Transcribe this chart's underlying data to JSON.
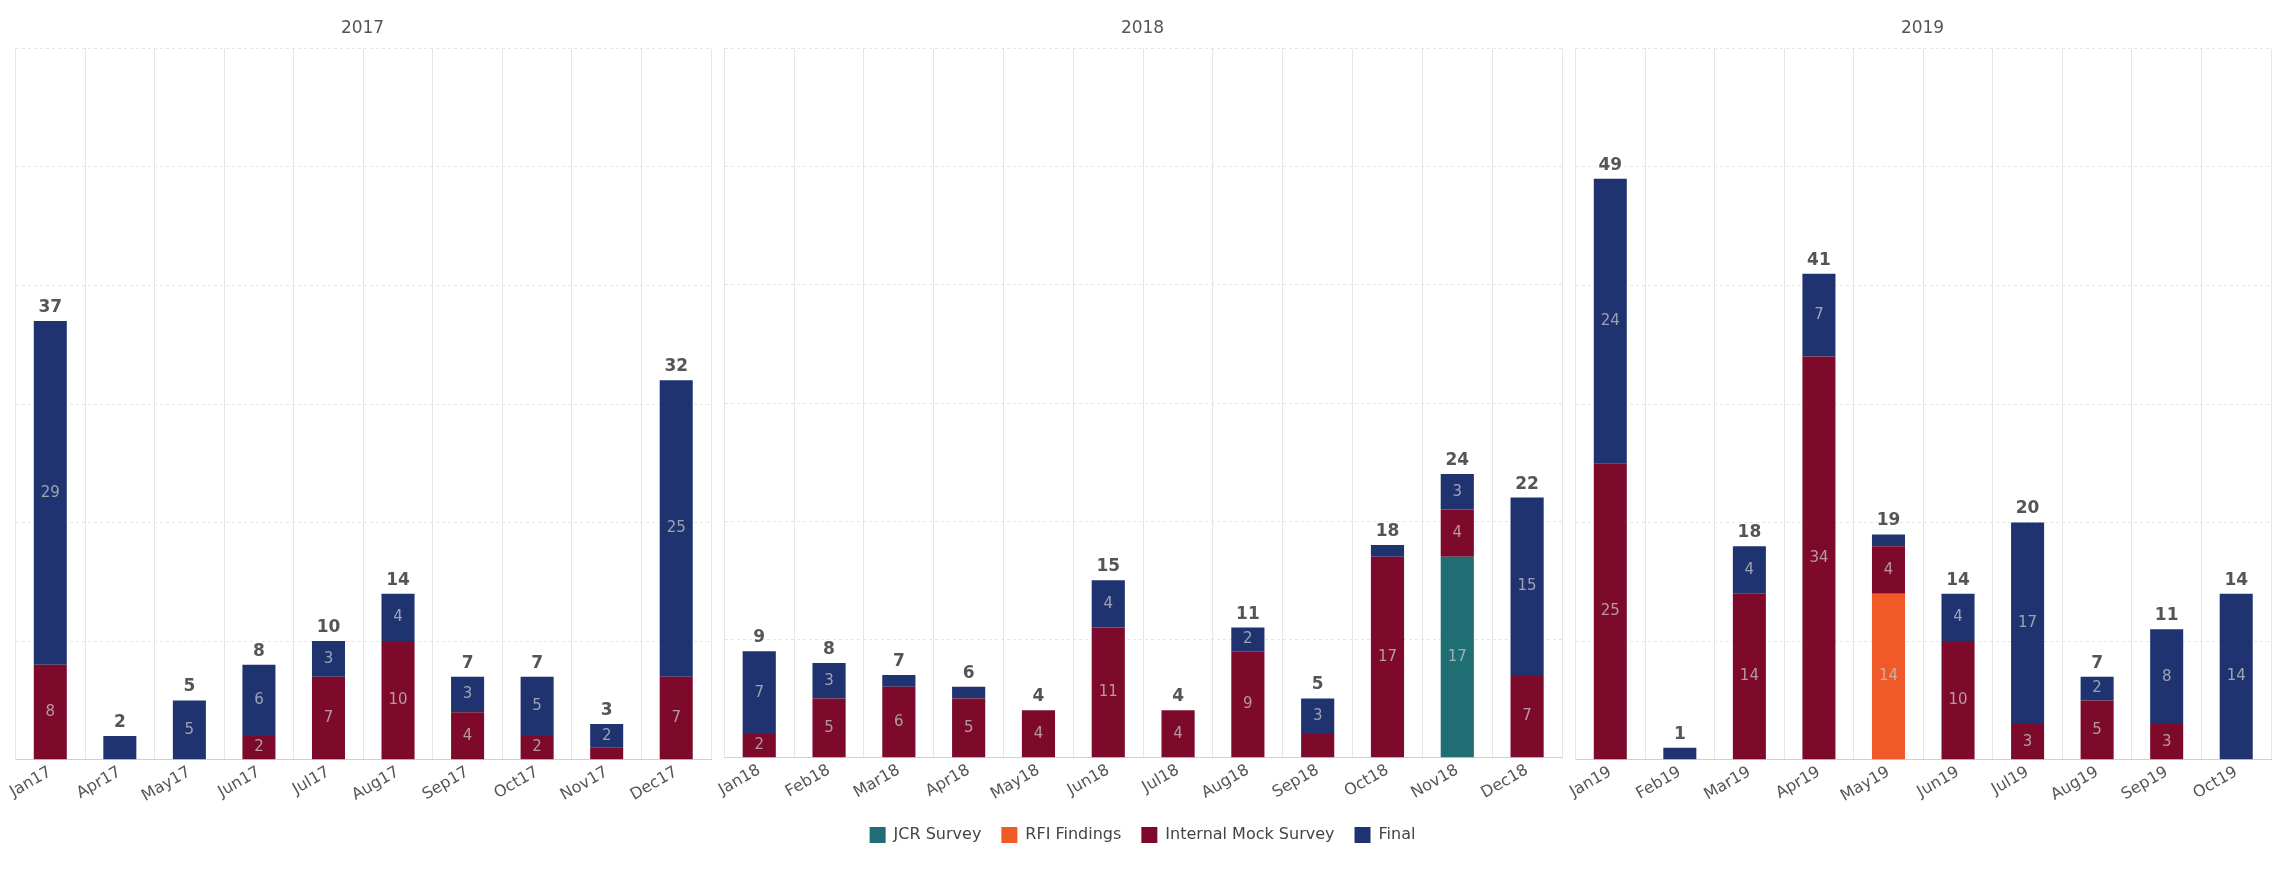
{
  "chart_data": [
    {
      "type": "bar",
      "title": "2017",
      "stacked": true,
      "grid": true,
      "tick_labels": "x",
      "legend": false,
      "ylim": [
        0,
        60
      ],
      "yticks": [
        {
          "value": 0,
          "label": null
        },
        {
          "value": 10,
          "label": null
        },
        {
          "value": 20,
          "label": null
        },
        {
          "value": 30,
          "label": null
        },
        {
          "value": 40,
          "label": null
        },
        {
          "value": 50,
          "label": null
        },
        {
          "value": 60,
          "label": null
        }
      ],
      "categories": [
        "Jan17",
        "Apr17",
        "May17",
        "Jun17",
        "Jul17",
        "Aug17",
        "Sep17",
        "Oct17",
        "Nov17",
        "Dec17"
      ],
      "series": [
        {
          "color": "#7d0a2a",
          "values": [
            8,
            null,
            null,
            2,
            7,
            10,
            4,
            2,
            1,
            7
          ],
          "value_labels": [
            "8",
            null,
            null,
            "2",
            "7",
            "10",
            "4",
            "2",
            null,
            "7"
          ]
        },
        {
          "color": "#1f3370",
          "values": [
            29,
            2,
            5,
            6,
            3,
            4,
            3,
            5,
            2,
            25
          ],
          "value_labels": [
            "29",
            null,
            "5",
            "6",
            "3",
            "4",
            "3",
            "5",
            "2",
            "25"
          ]
        }
      ],
      "totals": [
        "37",
        "2",
        "5",
        "8",
        "10",
        "14",
        "7",
        "7",
        "3",
        "32"
      ]
    },
    {
      "type": "bar",
      "title": "2018",
      "stacked": true,
      "grid": true,
      "tick_labels": "x",
      "legend": "bottom",
      "ylim": [
        0,
        60
      ],
      "yticks": [
        {
          "value": 0,
          "label": null
        },
        {
          "value": 10,
          "label": null
        },
        {
          "value": 20,
          "label": null
        },
        {
          "value": 30,
          "label": null
        },
        {
          "value": 40,
          "label": null
        },
        {
          "value": 50,
          "label": null
        },
        {
          "value": 60,
          "label": null
        }
      ],
      "categories": [
        "Jan18",
        "Feb18",
        "Mar18",
        "Apr18",
        "May18",
        "Jun18",
        "Jul18",
        "Aug18",
        "Sep18",
        "Oct18",
        "Nov18",
        "Dec18"
      ],
      "series": [
        {
          "name": "JCR Survey",
          "color": "#1e6e73",
          "values": [
            null,
            null,
            null,
            null,
            null,
            null,
            null,
            null,
            null,
            null,
            17,
            null
          ],
          "value_labels": [
            null,
            null,
            null,
            null,
            null,
            null,
            null,
            null,
            null,
            null,
            "17",
            null
          ]
        },
        {
          "name": "RFI Findings",
          "color": "#f05a28",
          "values": [
            null,
            null,
            null,
            null,
            null,
            null,
            null,
            null,
            null,
            null,
            null,
            null
          ]
        },
        {
          "name": "Internal Mock Survey",
          "color": "#7d0a2a",
          "values": [
            2,
            5,
            6,
            5,
            4,
            11,
            4,
            9,
            2,
            17,
            4,
            7
          ],
          "value_labels": [
            "2",
            "5",
            "6",
            "5",
            "4",
            "11",
            "4",
            "9",
            null,
            "17",
            "4",
            "7"
          ]
        },
        {
          "name": "Final",
          "color": "#1f3370",
          "values": [
            7,
            3,
            1,
            1,
            null,
            4,
            null,
            2,
            3,
            1,
            3,
            15
          ],
          "value_labels": [
            "7",
            "3",
            null,
            null,
            null,
            "4",
            null,
            "2",
            "3",
            null,
            "3",
            "15"
          ]
        }
      ],
      "totals": [
        "9",
        "8",
        "7",
        "6",
        "4",
        "15",
        "4",
        "11",
        "5",
        "18",
        "24",
        "22"
      ]
    },
    {
      "type": "bar",
      "title": "2019",
      "stacked": true,
      "grid": true,
      "tick_labels": "x",
      "legend": false,
      "ylim": [
        0,
        60
      ],
      "yticks": [
        {
          "value": 0,
          "label": null
        },
        {
          "value": 10,
          "label": null
        },
        {
          "value": 20,
          "label": null
        },
        {
          "value": 30,
          "label": null
        },
        {
          "value": 40,
          "label": null
        },
        {
          "value": 50,
          "label": null
        },
        {
          "value": 60,
          "label": null
        }
      ],
      "categories": [
        "Jan19",
        "Feb19",
        "Mar19",
        "Apr19",
        "May19",
        "Jun19",
        "Jul19",
        "Aug19",
        "Sep19",
        "Oct19"
      ],
      "series": [
        {
          "color": "#f05a28",
          "values": [
            null,
            null,
            null,
            null,
            14,
            null,
            null,
            null,
            null,
            null
          ],
          "value_labels": [
            null,
            null,
            null,
            null,
            "14",
            null,
            null,
            null,
            null,
            null
          ]
        },
        {
          "color": "#7d0a2a",
          "values": [
            25,
            null,
            14,
            34,
            4,
            10,
            3,
            5,
            3,
            null
          ],
          "value_labels": [
            "25",
            null,
            "14",
            "34",
            "4",
            "10",
            "3",
            "5",
            "3",
            null
          ]
        },
        {
          "color": "#1f3370",
          "values": [
            24,
            1,
            4,
            7,
            1,
            4,
            17,
            2,
            8,
            14
          ],
          "value_labels": [
            "24",
            null,
            "4",
            "7",
            null,
            "4",
            "17",
            "2",
            "8",
            "14"
          ]
        }
      ],
      "totals": [
        "49",
        "1",
        "18",
        "41",
        "19",
        "14",
        "20",
        "7",
        "11",
        "14"
      ]
    }
  ]
}
